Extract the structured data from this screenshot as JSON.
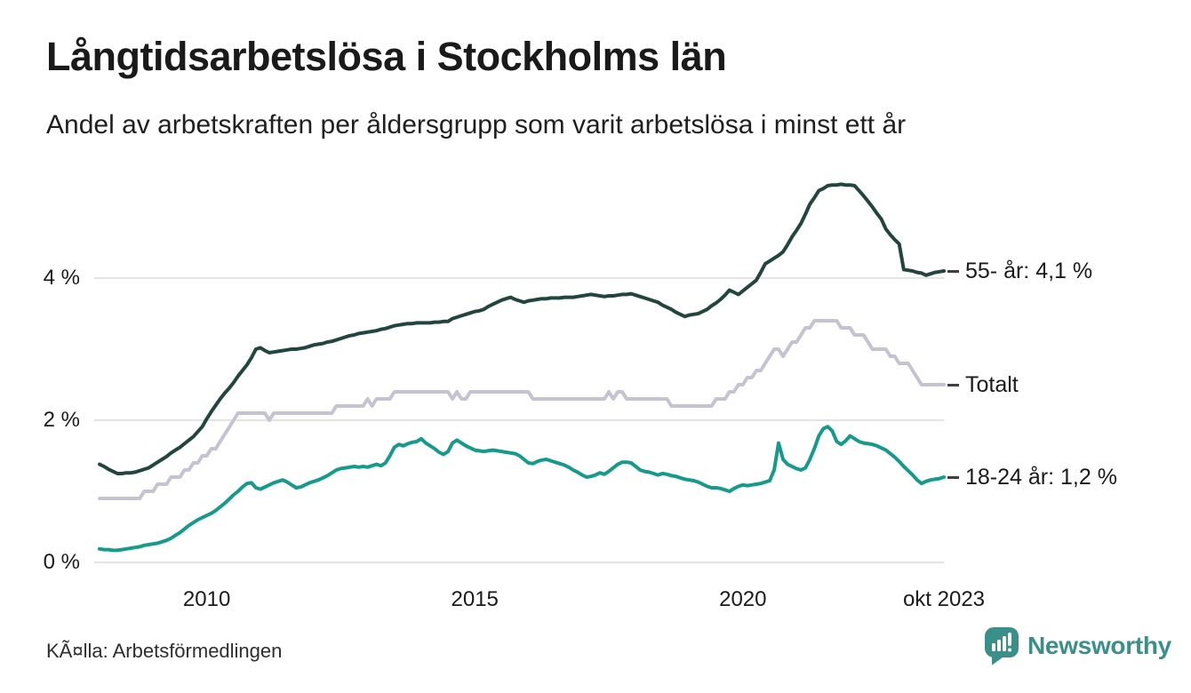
{
  "header": {
    "title": "Långtidsarbetslösa i Stockholms län",
    "subtitle": "Andel av arbetskraften per åldersgrupp som varit arbetslösa i minst ett år"
  },
  "footer": {
    "source": "KÃ¤lla: Arbetsförmedlingen",
    "brand": "Newsworthy",
    "brand_color": "#3a8f8a"
  },
  "chart_data": {
    "type": "line",
    "title": "Långtidsarbetslösa i Stockholms län",
    "subtitle": "Andel av arbetskraften per åldersgrupp som varit arbetslösa i minst ett år",
    "unit": "% av arbetskraften",
    "x": {
      "start": "2008-01",
      "end": "2023-10",
      "frequency": "monthly",
      "tick_labels": [
        "2010",
        "2015",
        "2020",
        "okt 2023"
      ],
      "tick_month_indices": [
        24,
        84,
        144,
        189
      ]
    },
    "y_axis": {
      "range": [
        0,
        5.5
      ],
      "grid": true,
      "grid_color": "#e3e3e3",
      "ticks": [
        {
          "value": 4,
          "label": "4 %"
        },
        {
          "value": 2,
          "label": "2 %"
        },
        {
          "value": 0,
          "label": "0 %"
        }
      ]
    },
    "legend_position": "right-end-labels",
    "series": [
      {
        "id": "age-55-plus",
        "name": "55- år",
        "end_label": "55- år: 4,1 %",
        "color": "#22463e",
        "values": [
          1.38,
          1.35,
          1.31,
          1.28,
          1.25,
          1.25,
          1.26,
          1.26,
          1.27,
          1.29,
          1.31,
          1.33,
          1.37,
          1.41,
          1.45,
          1.49,
          1.54,
          1.58,
          1.62,
          1.67,
          1.72,
          1.77,
          1.84,
          1.91,
          2.02,
          2.12,
          2.21,
          2.3,
          2.38,
          2.45,
          2.53,
          2.62,
          2.7,
          2.78,
          2.88,
          3.0,
          3.02,
          2.98,
          2.95,
          2.96,
          2.97,
          2.98,
          2.99,
          3.0,
          3.0,
          3.01,
          3.02,
          3.04,
          3.06,
          3.07,
          3.08,
          3.1,
          3.11,
          3.13,
          3.15,
          3.17,
          3.19,
          3.2,
          3.22,
          3.23,
          3.24,
          3.25,
          3.26,
          3.28,
          3.29,
          3.31,
          3.33,
          3.34,
          3.35,
          3.36,
          3.36,
          3.37,
          3.37,
          3.37,
          3.37,
          3.38,
          3.38,
          3.39,
          3.39,
          3.43,
          3.45,
          3.47,
          3.49,
          3.51,
          3.53,
          3.54,
          3.56,
          3.6,
          3.63,
          3.66,
          3.69,
          3.71,
          3.73,
          3.7,
          3.68,
          3.66,
          3.68,
          3.69,
          3.7,
          3.71,
          3.71,
          3.72,
          3.72,
          3.72,
          3.73,
          3.73,
          3.73,
          3.74,
          3.75,
          3.76,
          3.77,
          3.76,
          3.75,
          3.74,
          3.75,
          3.75,
          3.76,
          3.77,
          3.77,
          3.78,
          3.76,
          3.74,
          3.72,
          3.7,
          3.68,
          3.66,
          3.62,
          3.59,
          3.56,
          3.52,
          3.49,
          3.46,
          3.48,
          3.49,
          3.5,
          3.53,
          3.56,
          3.61,
          3.65,
          3.7,
          3.76,
          3.83,
          3.8,
          3.77,
          3.82,
          3.87,
          3.92,
          3.97,
          4.08,
          4.2,
          4.24,
          4.28,
          4.32,
          4.37,
          4.47,
          4.58,
          4.67,
          4.77,
          4.9,
          5.04,
          5.13,
          5.23,
          5.26,
          5.3,
          5.31,
          5.31,
          5.32,
          5.31,
          5.31,
          5.3,
          5.23,
          5.16,
          5.08,
          5.0,
          4.91,
          4.83,
          4.69,
          4.61,
          4.54,
          4.48,
          4.12,
          4.11,
          4.1,
          4.08,
          4.07,
          4.04,
          4.06,
          4.08,
          4.09,
          4.1
        ]
      },
      {
        "id": "total",
        "name": "Totalt",
        "end_label": "Totalt",
        "color": "#c6c2d2",
        "values": [
          0.9,
          0.9,
          0.9,
          0.9,
          0.9,
          0.9,
          0.9,
          0.9,
          0.9,
          0.9,
          1.0,
          1.0,
          1.0,
          1.1,
          1.1,
          1.1,
          1.2,
          1.2,
          1.2,
          1.3,
          1.3,
          1.4,
          1.4,
          1.5,
          1.5,
          1.6,
          1.6,
          1.7,
          1.8,
          1.9,
          2.0,
          2.1,
          2.1,
          2.1,
          2.1,
          2.1,
          2.1,
          2.1,
          2.0,
          2.1,
          2.1,
          2.1,
          2.1,
          2.1,
          2.1,
          2.1,
          2.1,
          2.1,
          2.1,
          2.1,
          2.1,
          2.1,
          2.1,
          2.2,
          2.2,
          2.2,
          2.2,
          2.2,
          2.2,
          2.2,
          2.3,
          2.2,
          2.3,
          2.3,
          2.3,
          2.3,
          2.4,
          2.4,
          2.4,
          2.4,
          2.4,
          2.4,
          2.4,
          2.4,
          2.4,
          2.4,
          2.4,
          2.4,
          2.4,
          2.3,
          2.4,
          2.3,
          2.3,
          2.4,
          2.4,
          2.4,
          2.4,
          2.4,
          2.4,
          2.4,
          2.4,
          2.4,
          2.4,
          2.4,
          2.4,
          2.4,
          2.4,
          2.3,
          2.3,
          2.3,
          2.3,
          2.3,
          2.3,
          2.3,
          2.3,
          2.3,
          2.3,
          2.3,
          2.3,
          2.3,
          2.3,
          2.3,
          2.3,
          2.3,
          2.4,
          2.3,
          2.4,
          2.4,
          2.3,
          2.3,
          2.3,
          2.3,
          2.3,
          2.3,
          2.3,
          2.3,
          2.3,
          2.3,
          2.2,
          2.2,
          2.2,
          2.2,
          2.2,
          2.2,
          2.2,
          2.2,
          2.2,
          2.2,
          2.3,
          2.3,
          2.3,
          2.4,
          2.4,
          2.5,
          2.5,
          2.6,
          2.6,
          2.7,
          2.7,
          2.8,
          2.9,
          3.0,
          3.0,
          2.9,
          3.0,
          3.1,
          3.1,
          3.2,
          3.3,
          3.3,
          3.4,
          3.4,
          3.4,
          3.4,
          3.4,
          3.4,
          3.3,
          3.3,
          3.3,
          3.2,
          3.2,
          3.2,
          3.1,
          3.0,
          3.0,
          3.0,
          3.0,
          2.9,
          2.9,
          2.8,
          2.8,
          2.8,
          2.7,
          2.6,
          2.5,
          2.5,
          2.5,
          2.5,
          2.5,
          2.5
        ]
      },
      {
        "id": "age-18-24",
        "name": "18-24 år",
        "end_label": "18-24 år: 1,2 %",
        "color": "#169a8b",
        "values": [
          0.19,
          0.18,
          0.18,
          0.17,
          0.17,
          0.18,
          0.19,
          0.2,
          0.21,
          0.22,
          0.24,
          0.25,
          0.26,
          0.27,
          0.29,
          0.31,
          0.34,
          0.38,
          0.42,
          0.47,
          0.52,
          0.56,
          0.6,
          0.63,
          0.66,
          0.69,
          0.73,
          0.78,
          0.83,
          0.89,
          0.95,
          1.0,
          1.06,
          1.11,
          1.12,
          1.05,
          1.03,
          1.06,
          1.09,
          1.12,
          1.14,
          1.16,
          1.13,
          1.09,
          1.05,
          1.06,
          1.09,
          1.12,
          1.14,
          1.16,
          1.19,
          1.22,
          1.26,
          1.3,
          1.32,
          1.33,
          1.34,
          1.35,
          1.34,
          1.35,
          1.34,
          1.36,
          1.38,
          1.36,
          1.4,
          1.5,
          1.62,
          1.66,
          1.64,
          1.67,
          1.69,
          1.7,
          1.74,
          1.68,
          1.64,
          1.6,
          1.55,
          1.52,
          1.56,
          1.68,
          1.72,
          1.68,
          1.64,
          1.61,
          1.58,
          1.57,
          1.56,
          1.57,
          1.58,
          1.57,
          1.56,
          1.55,
          1.54,
          1.53,
          1.5,
          1.45,
          1.4,
          1.39,
          1.42,
          1.44,
          1.45,
          1.43,
          1.41,
          1.39,
          1.37,
          1.34,
          1.3,
          1.27,
          1.23,
          1.2,
          1.21,
          1.23,
          1.26,
          1.24,
          1.28,
          1.33,
          1.38,
          1.41,
          1.41,
          1.4,
          1.35,
          1.3,
          1.28,
          1.27,
          1.25,
          1.23,
          1.25,
          1.24,
          1.22,
          1.21,
          1.19,
          1.17,
          1.16,
          1.15,
          1.13,
          1.1,
          1.07,
          1.05,
          1.05,
          1.04,
          1.02,
          1.0,
          1.04,
          1.07,
          1.09,
          1.08,
          1.09,
          1.1,
          1.11,
          1.13,
          1.15,
          1.3,
          1.68,
          1.45,
          1.38,
          1.35,
          1.32,
          1.3,
          1.33,
          1.45,
          1.6,
          1.78,
          1.88,
          1.91,
          1.85,
          1.7,
          1.66,
          1.71,
          1.78,
          1.74,
          1.7,
          1.68,
          1.67,
          1.66,
          1.64,
          1.61,
          1.58,
          1.53,
          1.48,
          1.42,
          1.35,
          1.29,
          1.23,
          1.16,
          1.11,
          1.14,
          1.16,
          1.17,
          1.18,
          1.2
        ]
      }
    ]
  }
}
